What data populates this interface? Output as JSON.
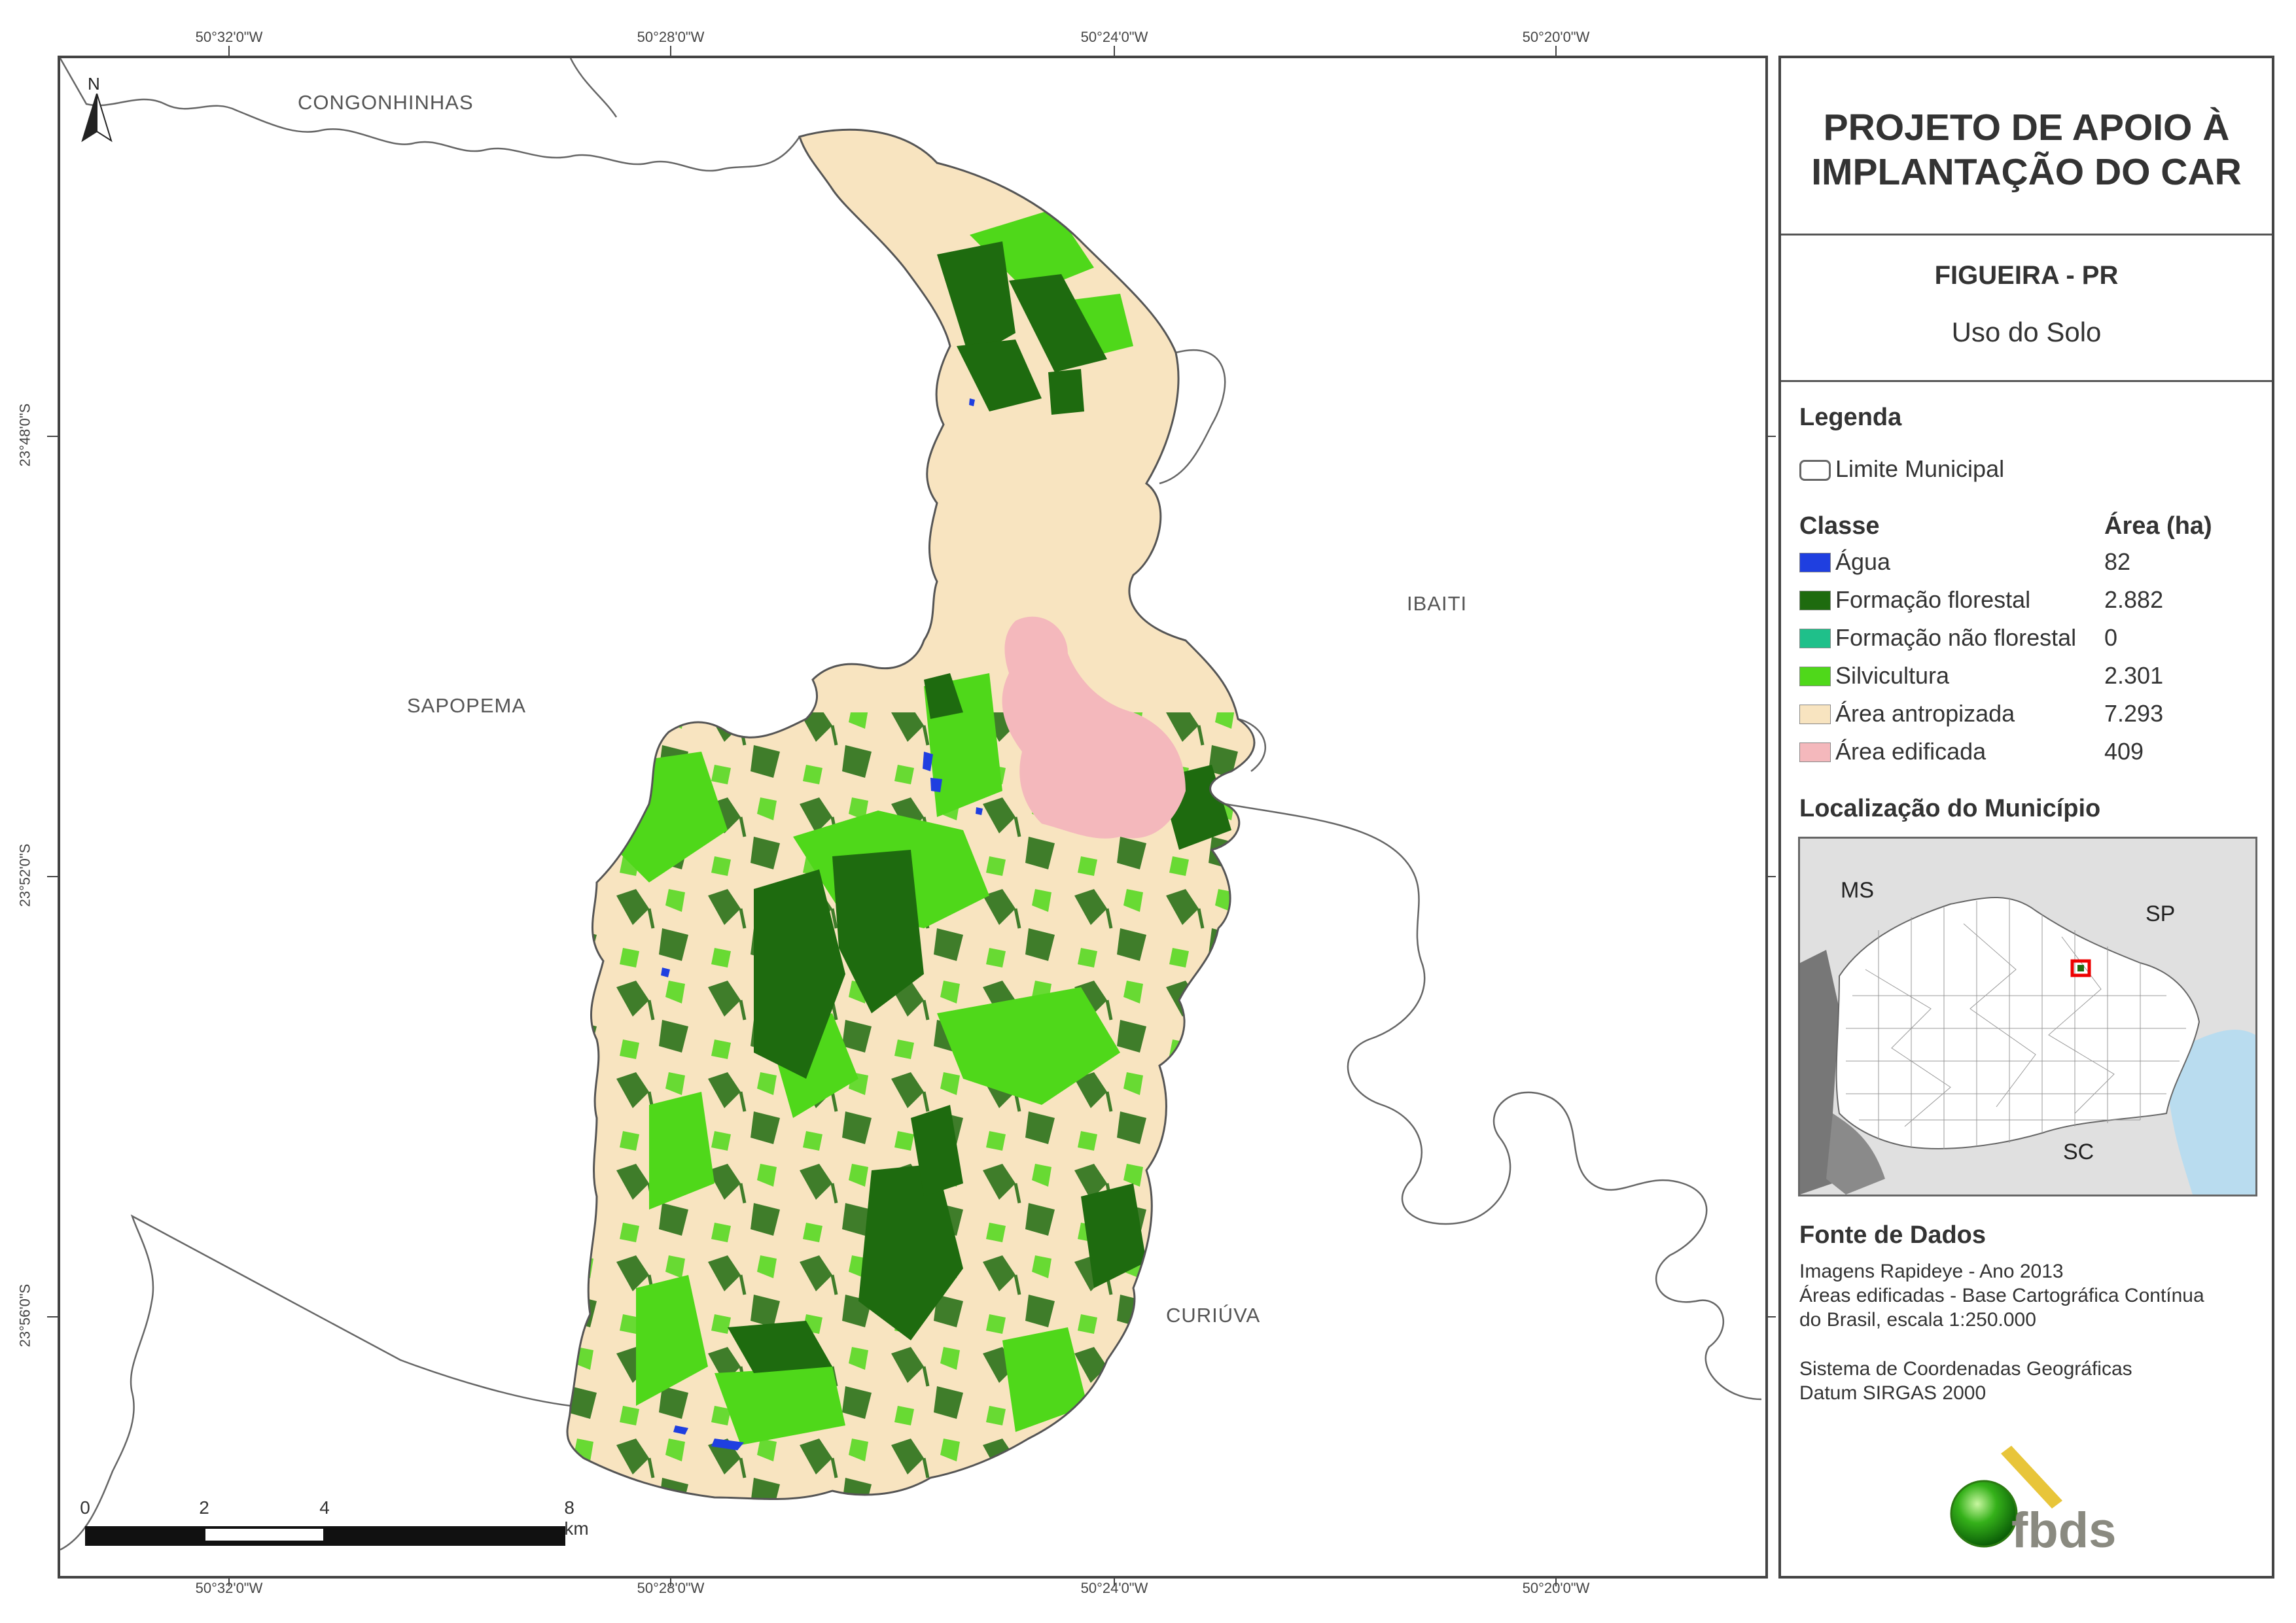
{
  "coords": {
    "top": [
      "50°32'0\"W",
      "50°28'0\"W",
      "50°24'0\"W",
      "50°20'0\"W"
    ],
    "bottom": [
      "50°32'0\"W",
      "50°28'0\"W",
      "50°24'0\"W",
      "50°20'0\"W"
    ],
    "left": [
      "23°48'0\"S",
      "23°52'0\"S",
      "23°56'0\"S"
    ]
  },
  "map": {
    "north": "N",
    "municipalities": {
      "congonhinhas": "CONGONHINHAS",
      "ibaiti": "IBAITI",
      "sapopema": "SAPOPEMA",
      "curiuva": "CURIÚVA"
    },
    "scale_labels": [
      "0",
      "2",
      "4",
      "8 km"
    ]
  },
  "panel": {
    "title_line1": "PROJETO DE APOIO À",
    "title_line2": "IMPLANTAÇÃO DO CAR",
    "municipality": "FIGUEIRA - PR",
    "theme": "Uso do Solo",
    "legend_heading": "Legenda",
    "boundary_label": "Limite Municipal",
    "class_heading": "Classe",
    "area_heading": "Área (ha)",
    "classes": [
      {
        "label": "Água",
        "area": "82",
        "color": "#1f3fe0"
      },
      {
        "label": "Formação florestal",
        "area": "2.882",
        "color": "#1e6b0f"
      },
      {
        "label": "Formação não florestal",
        "area": "0",
        "color": "#1fc08a"
      },
      {
        "label": "Silvicultura",
        "area": "2.301",
        "color": "#4fd81a"
      },
      {
        "label": "Área antropizada",
        "area": "7.293",
        "color": "#f8e4c0"
      },
      {
        "label": "Área edificada",
        "area": "409",
        "color": "#f4b8bc"
      }
    ],
    "location_heading": "Localização do Município",
    "inset_labels": {
      "ms": "MS",
      "sp": "SP",
      "sc": "SC"
    },
    "sources_heading": "Fonte de Dados",
    "sources": [
      "Imagens Rapideye - Ano 2013",
      "Áreas edificadas - Base Cartográfica Contínua",
      "do Brasil, escala 1:250.000"
    ],
    "crs": [
      "Sistema de Coordenadas Geográficas",
      "Datum SIRGAS 2000"
    ],
    "logo_text": "fbds"
  }
}
